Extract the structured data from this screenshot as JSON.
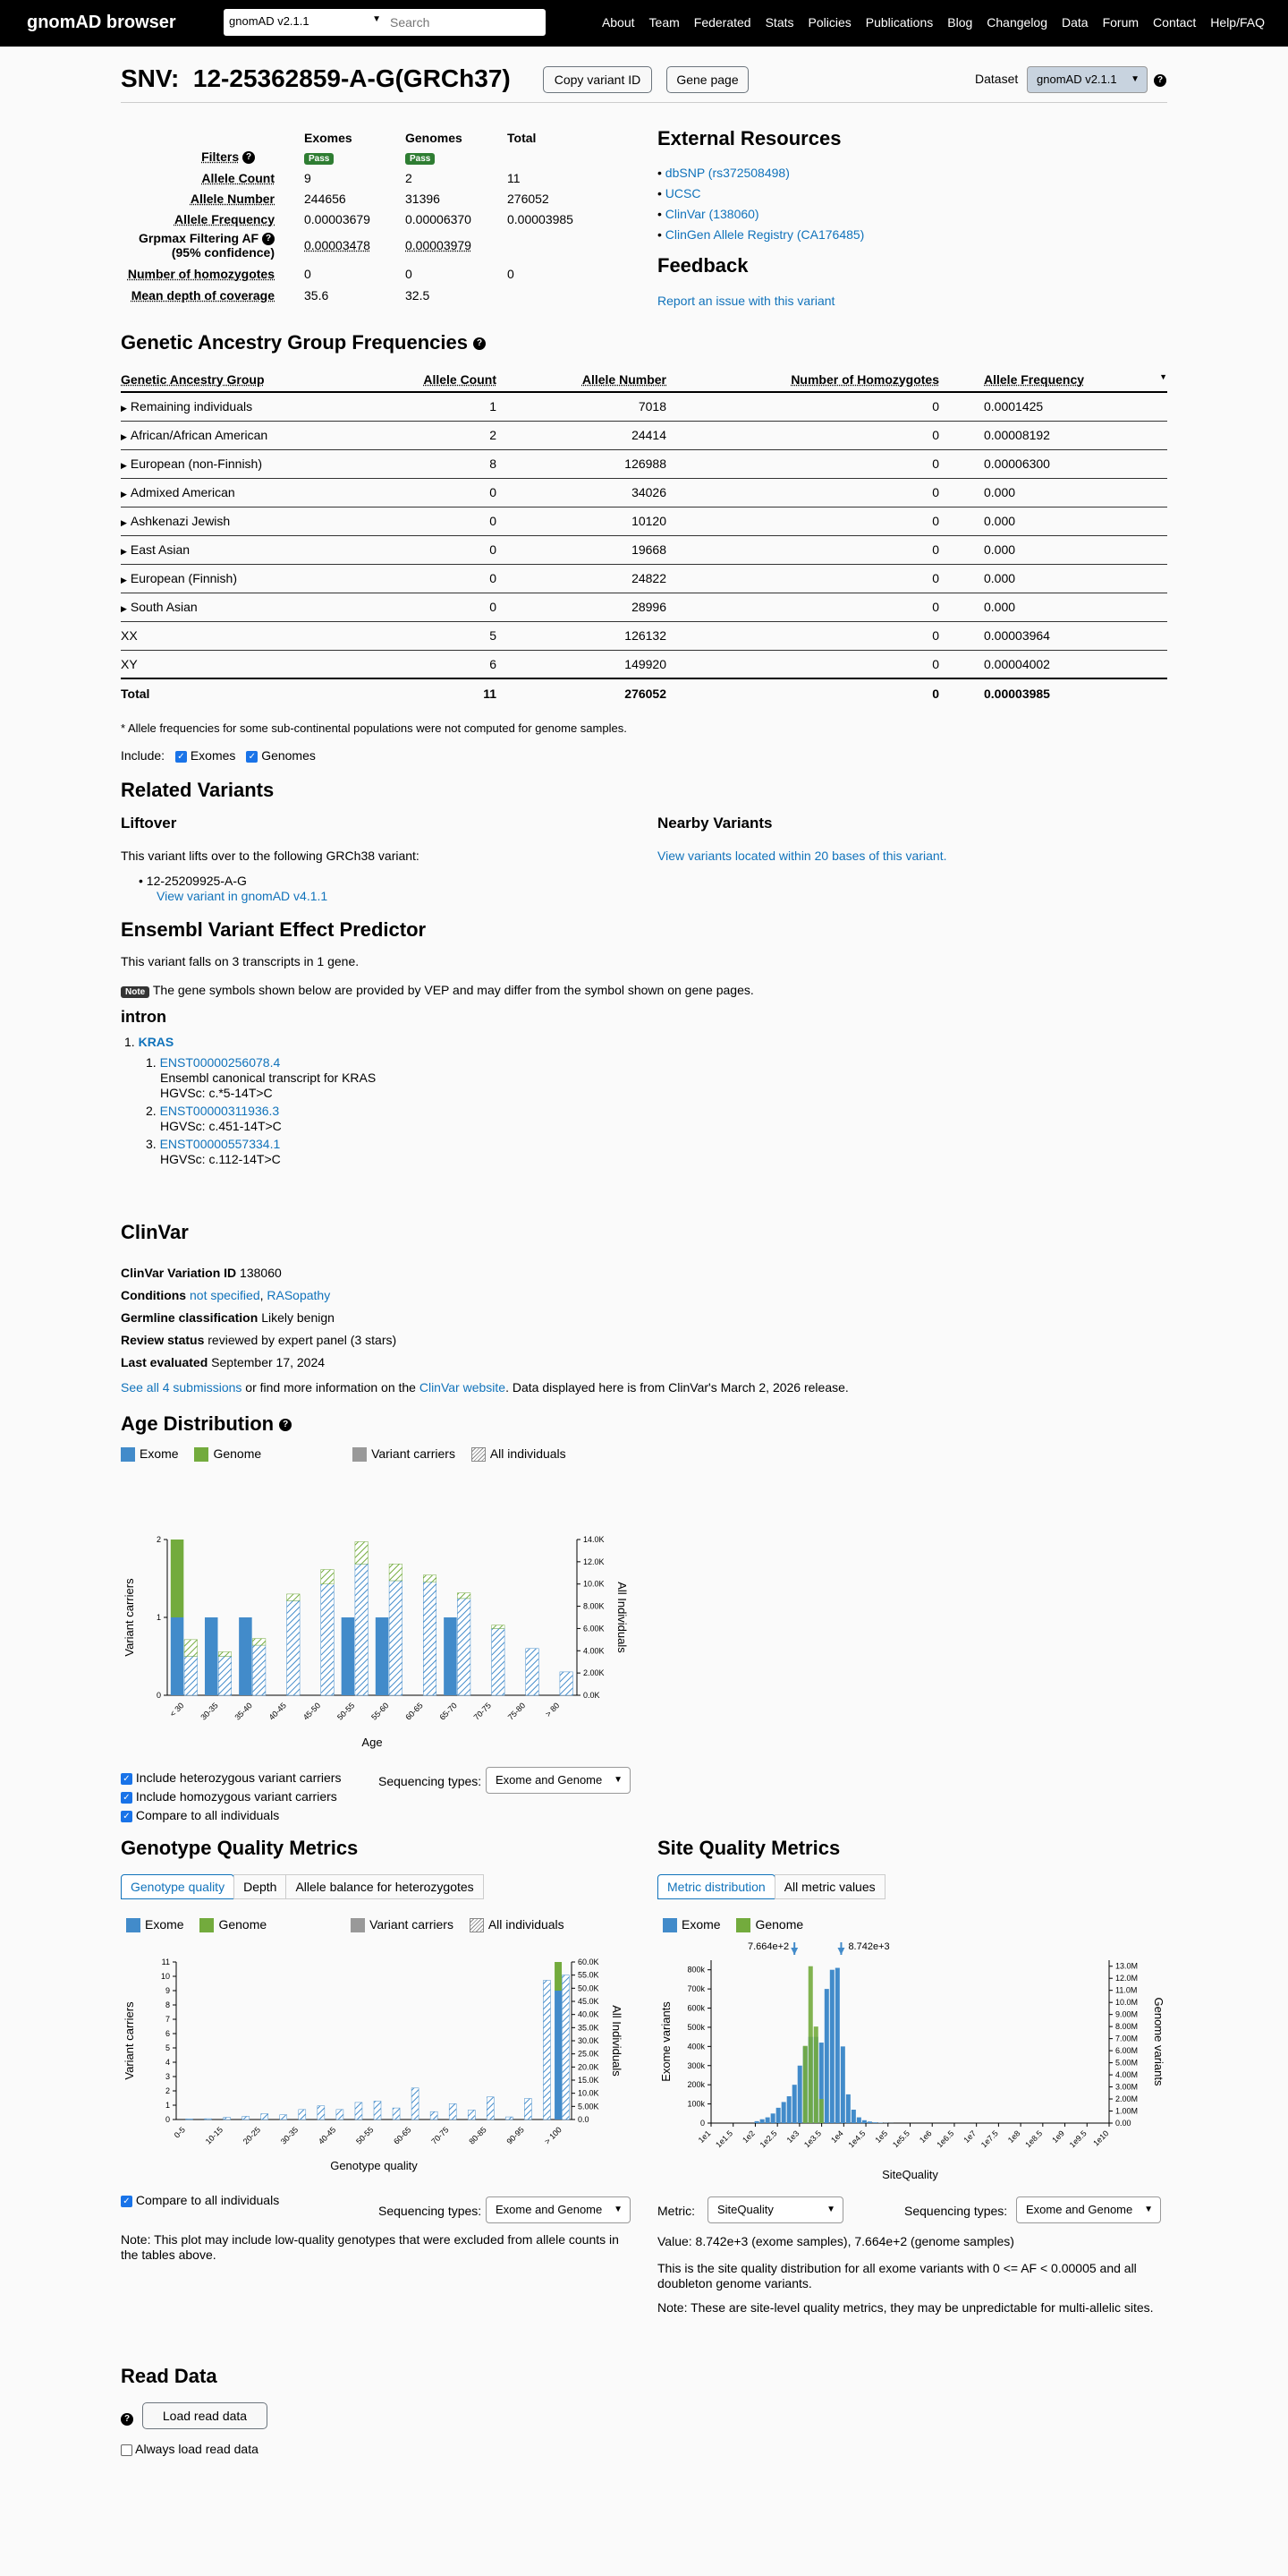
{
  "topbar": {
    "logo": "gnomAD browser",
    "dataset": "gnomAD v2.1.1",
    "search_placeholder": "Search",
    "nav": [
      "About",
      "Team",
      "Federated",
      "Stats",
      "Policies",
      "Publications",
      "Blog",
      "Changelog",
      "Data",
      "Forum",
      "Contact",
      "Help/FAQ"
    ]
  },
  "header": {
    "title": "SNV:  12-25362859-A-G(GRCh37)",
    "copy_button": "Copy variant ID",
    "gene_button": "Gene page",
    "dataset_label": "Dataset",
    "dataset_value": "gnomAD v2.1.1"
  },
  "summary": {
    "col_exomes": "Exomes",
    "col_genomes": "Genomes",
    "col_total": "Total",
    "pass": "Pass",
    "rows": [
      {
        "label": "Allele Count",
        "exomes": "9",
        "genomes": "2",
        "total": "11"
      },
      {
        "label": "Allele Number",
        "exomes": "244656",
        "genomes": "31396",
        "total": "276052"
      },
      {
        "label": "Allele Frequency",
        "exomes": "0.00003679",
        "genomes": "0.00006370",
        "total": "0.00003985"
      },
      {
        "label": "Grpmax Filtering AF",
        "label2": "(95% confidence)",
        "exomes": "0.00003478",
        "genomes": "0.00003979",
        "total": ""
      },
      {
        "label": "Number of homozygotes",
        "exomes": "0",
        "genomes": "0",
        "total": "0"
      },
      {
        "label": "Mean depth of coverage",
        "exomes": "35.6",
        "genomes": "32.5",
        "total": ""
      }
    ],
    "filters_label": "Filters"
  },
  "external": {
    "title": "External Resources",
    "links": [
      "dbSNP (rs372508498)",
      "UCSC",
      "ClinVar (138060)",
      "ClinGen Allele Registry (CA176485)"
    ],
    "feedback_title": "Feedback",
    "feedback_link": "Report an issue with this variant"
  },
  "ancestry": {
    "title": "Genetic Ancestry Group Frequencies",
    "headers": [
      "Genetic Ancestry Group",
      "Allele Count",
      "Allele Number",
      "Number of Homozygotes",
      "Allele Frequency"
    ],
    "rows": [
      {
        "group": "Remaining individuals",
        "ac": "1",
        "an": "7018",
        "hom": "0",
        "af": "0.0001425",
        "expand": true
      },
      {
        "group": "African/African American",
        "ac": "2",
        "an": "24414",
        "hom": "0",
        "af": "0.00008192",
        "expand": true
      },
      {
        "group": "European (non-Finnish)",
        "ac": "8",
        "an": "126988",
        "hom": "0",
        "af": "0.00006300",
        "expand": true
      },
      {
        "group": "Admixed American",
        "ac": "0",
        "an": "34026",
        "hom": "0",
        "af": "0.000",
        "expand": true
      },
      {
        "group": "Ashkenazi Jewish",
        "ac": "0",
        "an": "10120",
        "hom": "0",
        "af": "0.000",
        "expand": true
      },
      {
        "group": "East Asian",
        "ac": "0",
        "an": "19668",
        "hom": "0",
        "af": "0.000",
        "expand": true
      },
      {
        "group": "European (Finnish)",
        "ac": "0",
        "an": "24822",
        "hom": "0",
        "af": "0.000",
        "expand": true
      },
      {
        "group": "South Asian",
        "ac": "0",
        "an": "28996",
        "hom": "0",
        "af": "0.000",
        "expand": true
      },
      {
        "group": "XX",
        "ac": "5",
        "an": "126132",
        "hom": "0",
        "af": "0.00003964",
        "expand": false
      },
      {
        "group": "XY",
        "ac": "6",
        "an": "149920",
        "hom": "0",
        "af": "0.00004002",
        "expand": false
      }
    ],
    "total": {
      "group": "Total",
      "ac": "11",
      "an": "276052",
      "hom": "0",
      "af": "0.00003985"
    },
    "footnote": "* Allele frequencies for some sub-continental populations were not computed for genome samples.",
    "include_label": "Include:",
    "include_exomes": "Exomes",
    "include_genomes": "Genomes"
  },
  "related": {
    "title": "Related Variants",
    "liftover_title": "Liftover",
    "liftover_text": "This variant lifts over to the following GRCh38 variant:",
    "liftover_variant": "12-25209925-A-G",
    "liftover_link": "View variant in gnomAD v4.1.1",
    "nearby_title": "Nearby Variants",
    "nearby_link": "View variants located within 20 bases of this variant."
  },
  "vep": {
    "title": "Ensembl Variant Effect Predictor",
    "summary": "This variant falls on 3 transcripts in 1 gene.",
    "note_badge": "Note",
    "note": "The gene symbols shown below are provided by VEP and may differ from the symbol shown on gene pages.",
    "consequence": "intron",
    "gene_num": "1.",
    "gene": "KRAS",
    "transcripts": [
      {
        "num": "1.",
        "id": "ENST00000256078.4",
        "desc": "Ensembl canonical transcript for KRAS",
        "hgvsc": "HGVSc: c.*5-14T>C"
      },
      {
        "num": "2.",
        "id": "ENST00000311936.3",
        "desc": "",
        "hgvsc": "HGVSc: c.451-14T>C"
      },
      {
        "num": "3.",
        "id": "ENST00000557334.1",
        "desc": "",
        "hgvsc": "HGVSc: c.112-14T>C"
      }
    ]
  },
  "clinvar": {
    "title": "ClinVar",
    "id_label": "ClinVar Variation ID",
    "id": "138060",
    "cond_label": "Conditions",
    "cond1": "not specified",
    "cond_sep": ", ",
    "cond2": "RASopathy",
    "germ_label": "Germline classification",
    "germ": "Likely benign",
    "review_label": "Review status",
    "review": "reviewed by expert panel (3 stars)",
    "eval_label": "Last evaluated",
    "eval": "September 17, 2024",
    "sub_link": "See all 4 submissions",
    "sub_mid": " or find more information on the ",
    "site_link": "ClinVar website",
    "sub_end": ". Data displayed here is from ClinVar's March 2, 2026 release."
  },
  "legend": {
    "exome": "Exome",
    "genome": "Genome",
    "carriers": "Variant carriers",
    "all": "All individuals"
  },
  "colors": {
    "exome": "#428bca",
    "genome": "#73ab3d",
    "link": "#1173bb"
  },
  "age": {
    "title": "Age Distribution",
    "ylabel": "Variant carriers",
    "y2label": "All Individuals",
    "xlabel": "Age",
    "opt1": "Include heterozygous variant carriers",
    "opt2": "Include homozygous variant carriers",
    "opt3": "Compare to all individuals",
    "seq_label": "Sequencing types:",
    "seq_value": "Exome and Genome"
  },
  "gq": {
    "title": "Genotype Quality Metrics",
    "tabs": [
      "Genotype quality",
      "Depth",
      "Allele balance for heterozygotes"
    ],
    "ylabel": "Variant carriers",
    "y2label": "All Individuals",
    "xlabel": "Genotype quality",
    "compare": "Compare to all individuals",
    "seq_label": "Sequencing types:",
    "seq_value": "Exome and Genome",
    "note": "Note: This plot may include low-quality genotypes that were excluded from allele counts in the tables above."
  },
  "sq": {
    "title": "Site Quality Metrics",
    "tabs": [
      "Metric distribution",
      "All metric values"
    ],
    "ylabel": "Exome variants",
    "y2label": "Genome variants",
    "xlabel": "SiteQuality",
    "metric_label": "Metric:",
    "metric_value": "SiteQuality",
    "seq_label": "Sequencing types:",
    "seq_value": "Exome and Genome",
    "value_text": "Value: 8.742e+3 (exome samples), 7.664e+2 (genome samples)",
    "desc": "This is the site quality distribution for all exome variants with 0 <= AF < 0.00005 and all doubleton genome variants.",
    "note": "Note: These are site-level quality metrics, they may be unpredictable for multi-allelic sites."
  },
  "read": {
    "title": "Read Data",
    "load_button": "Load read data",
    "always": "Always load read data"
  },
  "chart_data": [
    {
      "type": "bar",
      "title": "Age Distribution",
      "xlabel": "Age",
      "ylabel": "Variant carriers",
      "y2label": "All Individuals",
      "ylim": [
        0,
        2
      ],
      "y2lim": [
        0,
        14000
      ],
      "yticks": [
        "0",
        "1",
        "2"
      ],
      "y2ticks": [
        "0.0K",
        "2.00K",
        "4.00K",
        "6.00K",
        "8.00K",
        "10.0K",
        "12.0K",
        "14.0K"
      ],
      "categories": [
        "< 30",
        "30-35",
        "35-40",
        "40-45",
        "45-50",
        "50-55",
        "55-60",
        "60-65",
        "65-70",
        "70-75",
        "75-80",
        "> 80"
      ],
      "series": [
        {
          "name": "Exome",
          "values": [
            1,
            1,
            1,
            0,
            0,
            1,
            1,
            0,
            1,
            0,
            0,
            0
          ]
        },
        {
          "name": "Genome",
          "values": [
            1,
            0,
            0,
            0,
            0,
            0,
            0,
            0,
            0,
            0,
            0,
            0
          ]
        },
        {
          "name": "All individuals (Exome)",
          "values": [
            3500,
            3500,
            4500,
            8500,
            10000,
            11800,
            10300,
            10200,
            8700,
            6000,
            4200,
            2100
          ]
        },
        {
          "name": "All individuals (Genome)",
          "values": [
            1500,
            400,
            600,
            600,
            1300,
            2000,
            1500,
            600,
            500,
            300,
            0,
            0
          ]
        }
      ]
    },
    {
      "type": "bar",
      "title": "Genotype Quality Metrics",
      "xlabel": "Genotype quality",
      "ylabel": "Variant carriers",
      "y2label": "All Individuals",
      "ylim": [
        0,
        11
      ],
      "y2lim": [
        0,
        60000
      ],
      "yticks": [
        "0",
        "1",
        "2",
        "3",
        "4",
        "5",
        "6",
        "7",
        "8",
        "9",
        "10",
        "11"
      ],
      "y2ticks": [
        "0.0",
        "5.00K",
        "10.0K",
        "15.0K",
        "20.0K",
        "25.0K",
        "30.0K",
        "35.0K",
        "40.0K",
        "45.0K",
        "50.0K",
        "55.0K",
        "60.0K"
      ],
      "categories": [
        "0-5",
        "5-10",
        "10-15",
        "15-20",
        "20-25",
        "25-30",
        "30-35",
        "35-40",
        "40-45",
        "45-50",
        "50-55",
        "55-60",
        "60-65",
        "65-70",
        "70-75",
        "75-80",
        "80-85",
        "85-90",
        "90-95",
        "95-100",
        "> 100"
      ],
      "xlabels_shown": [
        "0-5",
        "10-15",
        "20-25",
        "30-35",
        "40-45",
        "50-55",
        "60-65",
        "70-75",
        "80-85",
        "90-95",
        "> 100"
      ],
      "series": [
        {
          "name": "Exome",
          "values": [
            0,
            0,
            0,
            0,
            0,
            0,
            0,
            0,
            0,
            0,
            0,
            0,
            0,
            0,
            0,
            0,
            0,
            0,
            0,
            0,
            9
          ]
        },
        {
          "name": "Genome",
          "values": [
            0,
            0,
            0,
            0,
            0,
            0,
            0,
            0,
            0,
            0,
            0,
            0,
            0,
            0,
            0,
            0,
            0,
            0,
            0,
            0,
            2
          ]
        },
        {
          "name": "All individuals",
          "values": [
            200,
            300,
            800,
            1200,
            2200,
            1800,
            3800,
            5200,
            3800,
            6500,
            7000,
            4400,
            12000,
            3000,
            6000,
            3600,
            8600,
            1000,
            8000,
            53000,
            55000
          ]
        }
      ]
    },
    {
      "type": "bar",
      "title": "Site Quality Metrics",
      "xlabel": "SiteQuality",
      "ylabel": "Exome variants",
      "y2label": "Genome variants",
      "ylim": [
        0,
        850000
      ],
      "y2lim": [
        0,
        13500000
      ],
      "yticks": [
        "0",
        "100k",
        "200k",
        "300k",
        "400k",
        "500k",
        "600k",
        "700k",
        "800k"
      ],
      "y2ticks": [
        "0.00",
        "1.00M",
        "2.00M",
        "3.00M",
        "4.00M",
        "5.00M",
        "6.00M",
        "7.00M",
        "8.00M",
        "9.00M",
        "10.0M",
        "11.0M",
        "12.0M",
        "13.0M"
      ],
      "xticks": [
        "1e1",
        "1e1.5",
        "1e2",
        "1e2.5",
        "1e3",
        "1e3.5",
        "1e4",
        "1e4.5",
        "1e5",
        "1e5.5",
        "1e6",
        "1e6.5",
        "1e7",
        "1e7.5",
        "1e8",
        "1e8.5",
        "1e9",
        "1e9.5",
        "1e10"
      ],
      "markers": [
        {
          "label": "7.664e+2",
          "series": "Genome"
        },
        {
          "label": "8.742e+3",
          "series": "Exome"
        }
      ],
      "series": [
        {
          "name": "Exome",
          "values": [
            0,
            0,
            0,
            0,
            0,
            0,
            0,
            0,
            10000,
            20000,
            30000,
            50000,
            80000,
            110000,
            140000,
            200000,
            300000,
            400000,
            450000,
            450000,
            420000,
            700000,
            800000,
            810000,
            400000,
            150000,
            70000,
            30000,
            15000,
            8000,
            4000,
            2000,
            1000,
            500,
            0,
            0,
            0,
            0,
            0,
            0,
            0,
            0,
            0,
            0,
            0,
            0,
            0,
            0,
            0,
            0,
            0,
            0,
            0,
            0,
            0,
            0,
            0,
            0,
            0,
            0,
            0,
            0,
            0,
            0,
            0,
            0,
            0,
            0,
            0,
            0,
            0,
            0,
            0,
            0
          ]
        },
        {
          "name": "Genome",
          "values": [
            0,
            0,
            0,
            0,
            0,
            0,
            0,
            0,
            0,
            0,
            0,
            0,
            0,
            0,
            0,
            0,
            0,
            6400000,
            13000000,
            8000000,
            2000000,
            0,
            0,
            0,
            0,
            0,
            0,
            0,
            0,
            0,
            0,
            0,
            0,
            0,
            0,
            0,
            0,
            0,
            0,
            0,
            0,
            0,
            0,
            0,
            0,
            0,
            0,
            0,
            0,
            0,
            0,
            0,
            0,
            0,
            0,
            0,
            0,
            0,
            0,
            0,
            0,
            0,
            0,
            0,
            0,
            0,
            0,
            0,
            0,
            0,
            0,
            0,
            0,
            0
          ]
        }
      ]
    }
  ]
}
